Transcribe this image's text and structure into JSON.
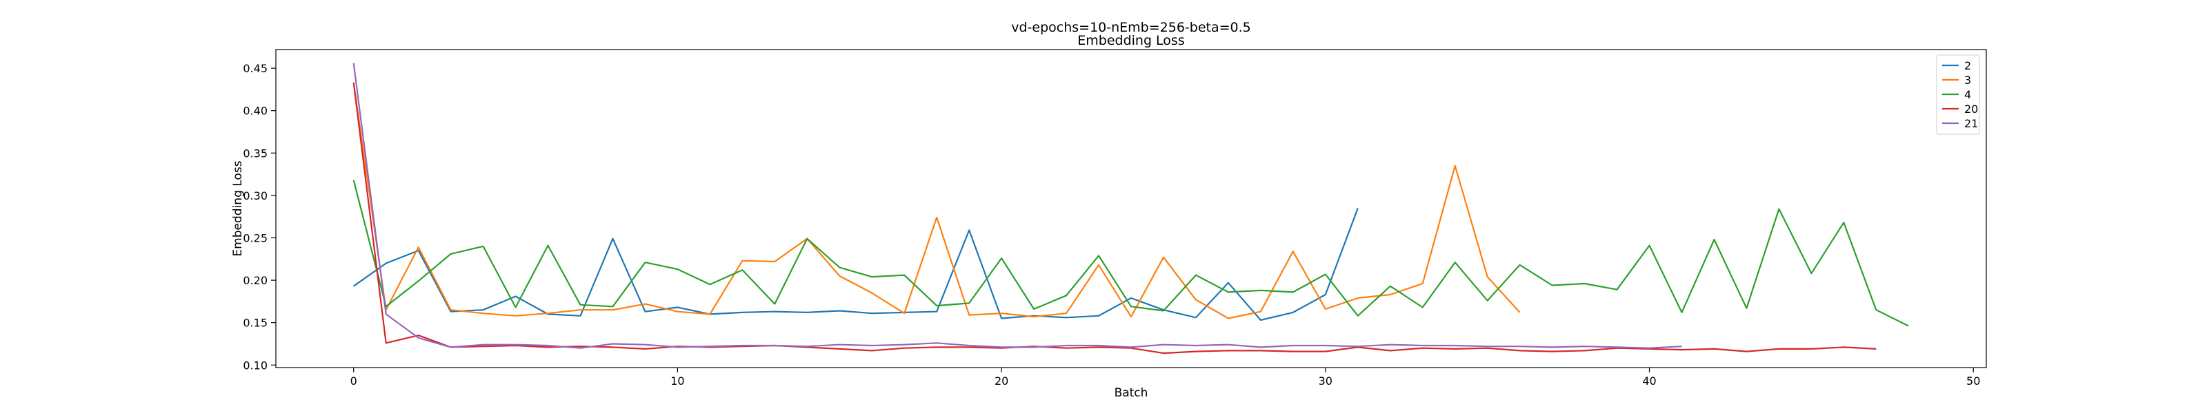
{
  "chart_data": {
    "type": "line",
    "title": "vd-epochs=10-nEmb=256-beta=0.5",
    "subtitle": "Embedding Loss",
    "xlabel": "Batch",
    "ylabel": "Embedding Loss",
    "xlim": [
      -2.4,
      50.4
    ],
    "ylim": [
      0.097,
      0.472
    ],
    "xticks": [
      0,
      10,
      20,
      30,
      40,
      50
    ],
    "yticks": [
      0.1,
      0.15,
      0.2,
      0.25,
      0.3,
      0.35,
      0.4,
      0.45
    ],
    "legend_position": "top-right",
    "grid": false,
    "series": [
      {
        "name": "2",
        "color": "#1f77b4",
        "values": [
          0.193,
          0.22,
          0.235,
          0.163,
          0.165,
          0.181,
          0.16,
          0.158,
          0.249,
          0.163,
          0.168,
          0.16,
          0.162,
          0.163,
          0.162,
          0.164,
          0.161,
          0.162,
          0.163,
          0.259,
          0.155,
          0.158,
          0.156,
          0.158,
          0.179,
          0.165,
          0.156,
          0.197,
          0.153,
          0.162,
          0.183,
          0.285
        ]
      },
      {
        "name": "3",
        "color": "#ff7f0e",
        "values": [
          0.433,
          0.165,
          0.239,
          0.165,
          0.161,
          0.158,
          0.161,
          0.165,
          0.165,
          0.172,
          0.163,
          0.16,
          0.223,
          0.222,
          0.249,
          0.205,
          0.185,
          0.161,
          0.274,
          0.159,
          0.161,
          0.157,
          0.161,
          0.218,
          0.157,
          0.227,
          0.177,
          0.155,
          0.163,
          0.234,
          0.166,
          0.179,
          0.183,
          0.196,
          0.335,
          0.204,
          0.162
        ]
      },
      {
        "name": "4",
        "color": "#2ca02c",
        "values": [
          0.318,
          0.169,
          0.199,
          0.231,
          0.24,
          0.168,
          0.241,
          0.171,
          0.169,
          0.221,
          0.213,
          0.195,
          0.212,
          0.172,
          0.249,
          0.215,
          0.204,
          0.206,
          0.17,
          0.173,
          0.226,
          0.166,
          0.182,
          0.229,
          0.169,
          0.164,
          0.206,
          0.186,
          0.188,
          0.186,
          0.207,
          0.158,
          0.193,
          0.168,
          0.221,
          0.176,
          0.218,
          0.194,
          0.196,
          0.189,
          0.241,
          0.162,
          0.248,
          0.167,
          0.284,
          0.208,
          0.268,
          0.165,
          0.146
        ]
      },
      {
        "name": "20",
        "color": "#d62728",
        "values": [
          0.433,
          0.126,
          0.135,
          0.121,
          0.122,
          0.123,
          0.121,
          0.122,
          0.121,
          0.119,
          0.122,
          0.121,
          0.122,
          0.123,
          0.121,
          0.119,
          0.117,
          0.12,
          0.121,
          0.121,
          0.12,
          0.122,
          0.12,
          0.121,
          0.12,
          0.114,
          0.116,
          0.117,
          0.117,
          0.116,
          0.116,
          0.121,
          0.117,
          0.12,
          0.119,
          0.12,
          0.117,
          0.116,
          0.117,
          0.12,
          0.119,
          0.118,
          0.119,
          0.116,
          0.119,
          0.119,
          0.121,
          0.119
        ]
      },
      {
        "name": "21",
        "color": "#9467bd",
        "values": [
          0.456,
          0.16,
          0.132,
          0.121,
          0.124,
          0.124,
          0.123,
          0.12,
          0.125,
          0.124,
          0.121,
          0.122,
          0.123,
          0.123,
          0.122,
          0.124,
          0.123,
          0.124,
          0.126,
          0.123,
          0.121,
          0.121,
          0.123,
          0.123,
          0.121,
          0.124,
          0.123,
          0.124,
          0.121,
          0.123,
          0.123,
          0.122,
          0.124,
          0.123,
          0.123,
          0.122,
          0.122,
          0.121,
          0.122,
          0.121,
          0.12,
          0.122
        ]
      }
    ]
  }
}
